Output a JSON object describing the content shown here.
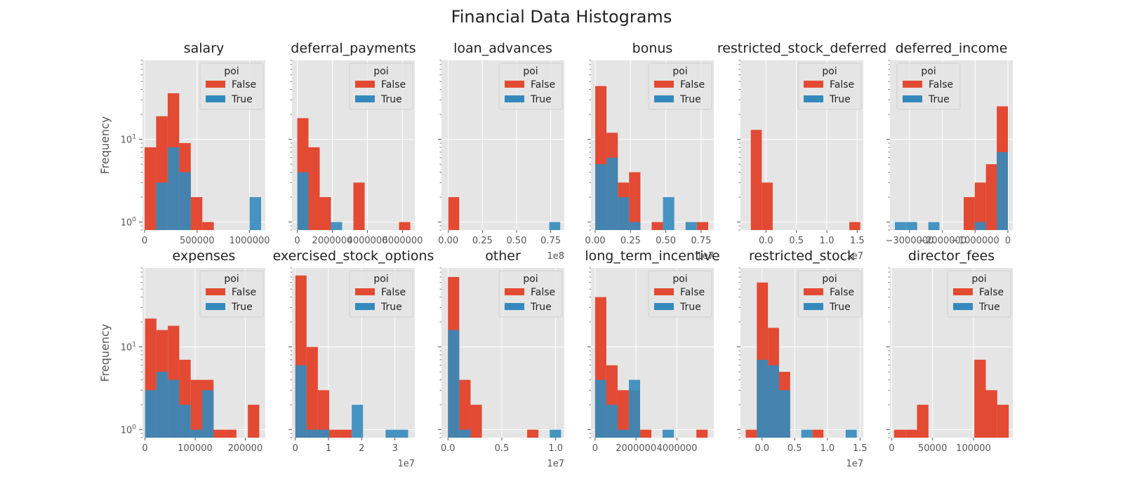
{
  "figure": {
    "title": "Financial Data Histograms"
  },
  "style": {
    "background": "#ffffff",
    "plot_bg": "#e5e5e5",
    "grid": "#ffffff",
    "tick_text": "#555555",
    "label_text": "#555555",
    "colors": {
      "False": "#e24a33",
      "True": "#348abd"
    }
  },
  "chart_data": [
    {
      "type": "bar",
      "title": "salary",
      "ylabel": "Frequency",
      "yscale": "log",
      "ylim": [
        0.8,
        90
      ],
      "xlim": [
        -20000,
        1150000
      ],
      "xticks": [
        0,
        500000,
        1000000
      ],
      "xtick_labels": [
        "0",
        "500000",
        "1000000"
      ],
      "offset_text": "",
      "legend": {
        "title": "poi",
        "entries": [
          "False",
          "True"
        ],
        "position": "upper-right"
      },
      "series": [
        {
          "name": "False",
          "bars": [
            [
              0,
              110000,
              8
            ],
            [
              110000,
              220000,
              19
            ],
            [
              220000,
              330000,
              36
            ],
            [
              330000,
              440000,
              9
            ],
            [
              440000,
              550000,
              2
            ],
            [
              550000,
              660000,
              1
            ]
          ]
        },
        {
          "name": "True",
          "bars": [
            [
              110000,
              220000,
              3
            ],
            [
              220000,
              330000,
              8
            ],
            [
              330000,
              440000,
              4
            ],
            [
              1000000,
              1110000,
              2
            ]
          ]
        }
      ]
    },
    {
      "type": "bar",
      "title": "deferral_payments",
      "ylabel": "",
      "yscale": "log",
      "ylim": [
        0.8,
        90
      ],
      "xlim": [
        -300000,
        6700000
      ],
      "xticks": [
        0,
        2000000,
        4000000,
        6000000
      ],
      "xtick_labels": [
        "0",
        "2000000",
        "4000000",
        "6000000"
      ],
      "offset_text": "",
      "legend": {
        "title": "poi",
        "entries": [
          "False",
          "True"
        ],
        "position": "upper-right"
      },
      "series": [
        {
          "name": "False",
          "bars": [
            [
              0,
              640000,
              18
            ],
            [
              640000,
              1280000,
              8
            ],
            [
              1280000,
              1920000,
              2
            ],
            [
              3200000,
              3840000,
              3
            ],
            [
              5800000,
              6440000,
              1
            ]
          ]
        },
        {
          "name": "True",
          "bars": [
            [
              0,
              640000,
              4
            ],
            [
              1920000,
              2560000,
              1
            ]
          ]
        }
      ]
    },
    {
      "type": "bar",
      "title": "loan_advances",
      "ylabel": "",
      "yscale": "log",
      "ylim": [
        0.8,
        90
      ],
      "xlim": [
        -5000000,
        85000000
      ],
      "xticks": [
        0,
        25000000,
        50000000,
        75000000
      ],
      "xtick_labels": [
        "0.00",
        "0.25",
        "0.50",
        "0.75"
      ],
      "offset_text": "1e8",
      "legend": {
        "title": "poi",
        "entries": [
          "False",
          "True"
        ],
        "position": "upper-right"
      },
      "series": [
        {
          "name": "False",
          "bars": [
            [
              0,
              8000000,
              2
            ]
          ]
        },
        {
          "name": "True",
          "bars": [
            [
              74000000,
              82000000,
              1
            ]
          ]
        }
      ]
    },
    {
      "type": "bar",
      "title": "bonus",
      "ylabel": "",
      "yscale": "log",
      "ylim": [
        0.8,
        90
      ],
      "xlim": [
        -300000,
        8400000
      ],
      "xticks": [
        0,
        2500000,
        5000000,
        7500000
      ],
      "xtick_labels": [
        "0.00",
        "0.25",
        "0.50",
        "0.75"
      ],
      "offset_text": "1e7",
      "legend": {
        "title": "poi",
        "entries": [
          "False",
          "True"
        ],
        "position": "upper-right"
      },
      "series": [
        {
          "name": "False",
          "bars": [
            [
              0,
              800000,
              44
            ],
            [
              800000,
              1600000,
              12
            ],
            [
              1600000,
              2400000,
              3
            ],
            [
              2400000,
              3200000,
              4
            ],
            [
              4000000,
              4800000,
              1
            ],
            [
              7200000,
              8000000,
              1
            ]
          ]
        },
        {
          "name": "True",
          "bars": [
            [
              0,
              800000,
              5
            ],
            [
              800000,
              1600000,
              6
            ],
            [
              1600000,
              2400000,
              2
            ],
            [
              2400000,
              3200000,
              1
            ],
            [
              4800000,
              5600000,
              2
            ],
            [
              6400000,
              7200000,
              1
            ]
          ]
        }
      ]
    },
    {
      "type": "bar",
      "title": "restricted_stock_deferred",
      "ylabel": "",
      "yscale": "log",
      "ylim": [
        0.8,
        90
      ],
      "xlim": [
        -4200000,
        16000000
      ],
      "xticks": [
        0,
        5000000,
        10000000,
        15000000
      ],
      "xtick_labels": [
        "0.0",
        "0.5",
        "1.0",
        "1.5"
      ],
      "offset_text": "1e7",
      "legend": {
        "title": "poi",
        "entries": [
          "False",
          "True"
        ],
        "position": "upper-right"
      },
      "series": [
        {
          "name": "False",
          "bars": [
            [
              -2500000,
              -700000,
              13
            ],
            [
              -700000,
              1100000,
              3
            ],
            [
              13700000,
              15500000,
              1
            ]
          ]
        },
        {
          "name": "True",
          "bars": []
        }
      ]
    },
    {
      "type": "bar",
      "title": "deferred_income",
      "ylabel": "",
      "yscale": "log",
      "ylim": [
        0.8,
        90
      ],
      "xlim": [
        -3600000,
        150000
      ],
      "xticks": [
        -3000000,
        -2000000,
        -1000000,
        0
      ],
      "xtick_labels": [
        "−3000000",
        "−2000000",
        "−1000000",
        "0"
      ],
      "offset_text": "",
      "legend": {
        "title": "poi",
        "entries": [
          "False",
          "True"
        ],
        "position": "upper-left"
      },
      "series": [
        {
          "name": "False",
          "bars": [
            [
              -1350000,
              -1010000,
              2
            ],
            [
              -1010000,
              -670000,
              3
            ],
            [
              -670000,
              -340000,
              5
            ],
            [
              -340000,
              0,
              25
            ]
          ]
        },
        {
          "name": "True",
          "bars": [
            [
              -3450000,
              -3110000,
              1
            ],
            [
              -3110000,
              -2770000,
              1
            ],
            [
              -2430000,
              -2090000,
              1
            ],
            [
              -1010000,
              -670000,
              1
            ],
            [
              -340000,
              0,
              7
            ]
          ]
        }
      ]
    },
    {
      "type": "bar",
      "title": "expenses",
      "ylabel": "Frequency",
      "yscale": "log",
      "ylim": [
        0.8,
        90
      ],
      "xlim": [
        -5000,
        240000
      ],
      "xticks": [
        0,
        100000,
        200000
      ],
      "xtick_labels": [
        "0",
        "100000",
        "200000"
      ],
      "offset_text": "",
      "legend": {
        "title": "poi",
        "entries": [
          "False",
          "True"
        ],
        "position": "upper-right"
      },
      "series": [
        {
          "name": "False",
          "bars": [
            [
              0,
              22800,
              22
            ],
            [
              22800,
              45600,
              16
            ],
            [
              45600,
              68400,
              18
            ],
            [
              68400,
              91200,
              7
            ],
            [
              91200,
              114000,
              4
            ],
            [
              114000,
              136800,
              4
            ],
            [
              136800,
              159600,
              1
            ],
            [
              159600,
              182400,
              1
            ],
            [
              205200,
              228000,
              2
            ]
          ]
        },
        {
          "name": "True",
          "bars": [
            [
              0,
              22800,
              3
            ],
            [
              22800,
              45600,
              5
            ],
            [
              45600,
              68400,
              4
            ],
            [
              68400,
              91200,
              2
            ],
            [
              91200,
              114000,
              1
            ],
            [
              114000,
              136800,
              3
            ]
          ]
        }
      ]
    },
    {
      "type": "bar",
      "title": "exercised_stock_options",
      "ylabel": "",
      "yscale": "log",
      "ylim": [
        0.8,
        90
      ],
      "xlim": [
        -1000000,
        36000000
      ],
      "xticks": [
        0,
        10000000,
        20000000,
        30000000
      ],
      "xtick_labels": [
        "0",
        "1",
        "2",
        "3"
      ],
      "offset_text": "1e7",
      "legend": {
        "title": "poi",
        "entries": [
          "False",
          "True"
        ],
        "position": "upper-right"
      },
      "series": [
        {
          "name": "False",
          "bars": [
            [
              0,
              3400000,
              73
            ],
            [
              3400000,
              6800000,
              10
            ],
            [
              6800000,
              10200000,
              3
            ],
            [
              10200000,
              13600000,
              1
            ],
            [
              13600000,
              17000000,
              1
            ]
          ]
        },
        {
          "name": "True",
          "bars": [
            [
              0,
              3400000,
              6
            ],
            [
              3400000,
              6800000,
              1
            ],
            [
              6800000,
              10200000,
              1
            ],
            [
              17000000,
              20400000,
              2
            ],
            [
              27200000,
              30600000,
              1
            ],
            [
              30600000,
              34000000,
              1
            ]
          ]
        }
      ]
    },
    {
      "type": "bar",
      "title": "other",
      "ylabel": "",
      "yscale": "log",
      "ylim": [
        0.8,
        90
      ],
      "xlim": [
        -600000,
        10800000
      ],
      "xticks": [
        0,
        5000000,
        10000000
      ],
      "xtick_labels": [
        "0.0",
        "0.5",
        "1.0"
      ],
      "offset_text": "1e7",
      "legend": {
        "title": "poi",
        "entries": [
          "False",
          "True"
        ],
        "position": "upper-right"
      },
      "series": [
        {
          "name": "False",
          "bars": [
            [
              0,
              1050000,
              70
            ],
            [
              1050000,
              2100000,
              4
            ],
            [
              2100000,
              3150000,
              2
            ],
            [
              7350000,
              8400000,
              1
            ]
          ]
        },
        {
          "name": "True",
          "bars": [
            [
              0,
              1050000,
              16
            ],
            [
              1050000,
              2100000,
              1
            ],
            [
              9450000,
              10500000,
              1
            ]
          ]
        }
      ]
    },
    {
      "type": "bar",
      "title": "long_term_incentive",
      "ylabel": "",
      "yscale": "log",
      "ylim": [
        0.8,
        90
      ],
      "xlim": [
        -200000,
        5800000
      ],
      "xticks": [
        0,
        2000000,
        4000000
      ],
      "xtick_labels": [
        "0",
        "2000000",
        "4000000"
      ],
      "offset_text": "",
      "legend": {
        "title": "poi",
        "entries": [
          "False",
          "True"
        ],
        "position": "upper-right"
      },
      "series": [
        {
          "name": "False",
          "bars": [
            [
              0,
              550000,
              40
            ],
            [
              550000,
              1100000,
              6
            ],
            [
              1100000,
              1650000,
              3
            ],
            [
              1650000,
              2200000,
              3
            ],
            [
              2200000,
              2750000,
              1
            ],
            [
              4950000,
              5500000,
              1
            ]
          ]
        },
        {
          "name": "True",
          "bars": [
            [
              0,
              550000,
              4
            ],
            [
              550000,
              1100000,
              2
            ],
            [
              1100000,
              1650000,
              1
            ],
            [
              1650000,
              2200000,
              4
            ],
            [
              3300000,
              3850000,
              1
            ]
          ]
        }
      ]
    },
    {
      "type": "bar",
      "title": "restricted_stock",
      "ylabel": "",
      "yscale": "log",
      "ylim": [
        0.8,
        90
      ],
      "xlim": [
        -3300000,
        15500000
      ],
      "xticks": [
        0,
        5000000,
        10000000,
        15000000
      ],
      "xtick_labels": [
        "0.0",
        "0.5",
        "1.0",
        "1.5"
      ],
      "offset_text": "1e7",
      "legend": {
        "title": "poi",
        "entries": [
          "False",
          "True"
        ],
        "position": "upper-right"
      },
      "series": [
        {
          "name": "False",
          "bars": [
            [
              -2500000,
              -800000,
              1
            ],
            [
              -800000,
              900000,
              60
            ],
            [
              900000,
              2600000,
              17
            ],
            [
              2600000,
              4300000,
              5
            ],
            [
              7700000,
              9400000,
              1
            ]
          ]
        },
        {
          "name": "True",
          "bars": [
            [
              -800000,
              900000,
              7
            ],
            [
              900000,
              2600000,
              6
            ],
            [
              2600000,
              4300000,
              3
            ],
            [
              6000000,
              7700000,
              1
            ],
            [
              12800000,
              14500000,
              1
            ]
          ]
        }
      ]
    },
    {
      "type": "bar",
      "title": "director_fees",
      "ylabel": "",
      "yscale": "log",
      "ylim": [
        0.8,
        90
      ],
      "xlim": [
        -2000,
        148000
      ],
      "xticks": [
        0,
        50000,
        100000
      ],
      "xtick_labels": [
        "0",
        "50000",
        "100000"
      ],
      "offset_text": "",
      "legend": {
        "title": "poi",
        "entries": [
          "False",
          "True"
        ],
        "position": "upper-right"
      },
      "series": [
        {
          "name": "False",
          "bars": [
            [
              3000,
              17000,
              1
            ],
            [
              17000,
              31000,
              1
            ],
            [
              31000,
              45000,
              2
            ],
            [
              101000,
              115000,
              7
            ],
            [
              115000,
              129000,
              3
            ],
            [
              129000,
              143000,
              2
            ]
          ]
        },
        {
          "name": "True",
          "bars": []
        }
      ]
    }
  ]
}
